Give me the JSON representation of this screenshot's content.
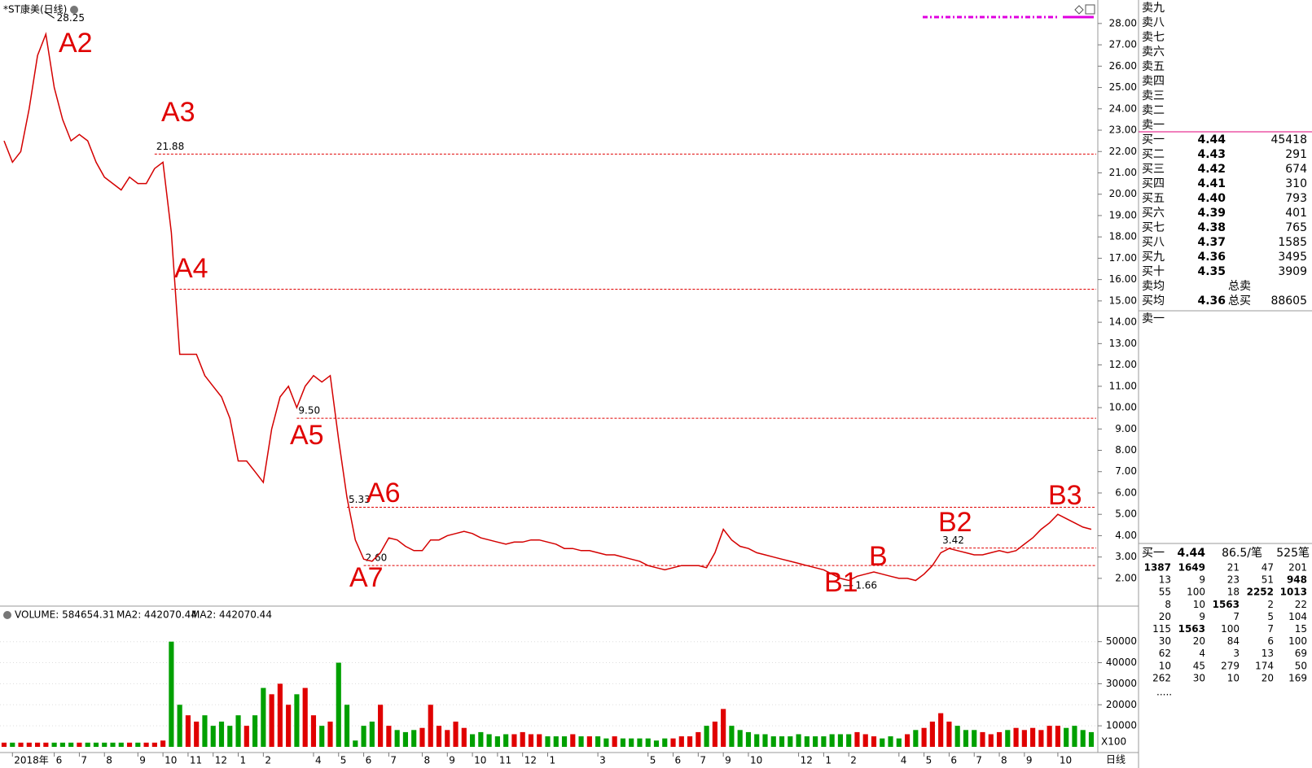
{
  "chart_data": [
    {
      "type": "line",
      "title": "*ST康美(日线)",
      "color": "#d40000",
      "values": [
        22.5,
        21.5,
        22,
        24,
        26.5,
        27.5,
        25,
        23.5,
        22.5,
        22.8,
        22.5,
        21.5,
        20.8,
        20.5,
        20.2,
        20.8,
        20.5,
        20.5,
        21.2,
        21.5,
        18.2,
        12.5,
        12.5,
        12.5,
        11.5,
        11,
        10.5,
        9.5,
        7.5,
        7.5,
        7,
        6.5,
        9,
        10.5,
        11,
        10,
        11,
        11.5,
        11.2,
        11.5,
        8.5,
        5.8,
        3.8,
        2.9,
        2.8,
        3.2,
        3.9,
        3.8,
        3.5,
        3.3,
        3.3,
        3.8,
        3.8,
        4,
        4.1,
        4.2,
        4.1,
        3.9,
        3.8,
        3.7,
        3.6,
        3.7,
        3.7,
        3.8,
        3.8,
        3.7,
        3.6,
        3.4,
        3.4,
        3.3,
        3.3,
        3.2,
        3.1,
        3.1,
        3,
        2.9,
        2.8,
        2.6,
        2.5,
        2.4,
        2.5,
        2.6,
        2.6,
        2.6,
        2.5,
        3.2,
        4.3,
        3.8,
        3.5,
        3.4,
        3.2,
        3.1,
        3,
        2.9,
        2.8,
        2.7,
        2.6,
        2.5,
        2.4,
        2.2,
        2,
        1.9,
        2.1,
        2.2,
        2.3,
        2.2,
        2.1,
        2,
        2,
        1.9,
        2.2,
        2.6,
        3.2,
        3.4,
        3.3,
        3.2,
        3.1,
        3.1,
        3.2,
        3.3,
        3.2,
        3.3,
        3.6,
        3.9,
        4.3,
        4.6,
        5,
        4.8,
        4.6,
        4.4,
        4.3
      ],
      "ylim": [
        0.7,
        29.1
      ],
      "yticks": [
        {
          "value": 2,
          "label": "2.00"
        },
        {
          "value": 3,
          "label": "3.00"
        },
        {
          "value": 4,
          "label": "4.00"
        },
        {
          "value": 5,
          "label": "5.00"
        },
        {
          "value": 6,
          "label": "6.00"
        },
        {
          "value": 7,
          "label": "7.00"
        },
        {
          "value": 8,
          "label": "8.00"
        },
        {
          "value": 9,
          "label": "9.00"
        },
        {
          "value": 10,
          "label": "10.00"
        },
        {
          "value": 11,
          "label": "11.00"
        },
        {
          "value": 12,
          "label": "12.00"
        },
        {
          "value": 13,
          "label": "13.00"
        },
        {
          "value": 14,
          "label": "14.00"
        },
        {
          "value": 15,
          "label": "15.00"
        },
        {
          "value": 16,
          "label": "16.00"
        },
        {
          "value": 17,
          "label": "17.00"
        },
        {
          "value": 18,
          "label": "18.00"
        },
        {
          "value": 19,
          "label": "19.00"
        },
        {
          "value": 20,
          "label": "20.00"
        },
        {
          "value": 21,
          "label": "21.00"
        },
        {
          "value": 22,
          "label": "22.00"
        },
        {
          "value": 23,
          "label": "23.00"
        },
        {
          "value": 24,
          "label": "24.00"
        },
        {
          "value": 25,
          "label": "25.00"
        },
        {
          "value": 26,
          "label": "26.00"
        },
        {
          "value": 27,
          "label": "27.00"
        },
        {
          "value": 28,
          "label": "28.00"
        }
      ],
      "reference_color": "#e00000",
      "reference_lines": [
        {
          "value": 21.88,
          "label": "21.88"
        },
        {
          "value": 15.55
        },
        {
          "value": 9.5,
          "label": "9.50"
        },
        {
          "value": 5.33,
          "label": "5.33"
        },
        {
          "value": 3.42,
          "label": "3.42"
        },
        {
          "value": 2.6,
          "label": "2.60"
        }
      ],
      "extremes": [
        28.25,
        1.66
      ],
      "annotations": [
        "A2",
        "A3",
        "A4",
        "A5",
        "A6",
        "A7",
        "B",
        "B1",
        "B2",
        "B3"
      ]
    },
    {
      "type": "bar",
      "legend": [
        "VOLUME: 584654.31",
        "MA2: 442070.44",
        "MA2: 442070.44"
      ],
      "legend_colors": [
        "#000000",
        "#000000",
        "#e000e0"
      ],
      "up_color": "#e00000",
      "down_color": "#00a000",
      "unit_label": "X100",
      "period_label": "日线",
      "categories": [
        null,
        "2018年",
        null,
        null,
        null,
        null,
        "6",
        null,
        null,
        "7",
        null,
        null,
        "8",
        null,
        null,
        null,
        "9",
        null,
        null,
        "10",
        null,
        null,
        "11",
        null,
        null,
        "12",
        null,
        null,
        "1",
        null,
        null,
        "2",
        null,
        null,
        null,
        null,
        null,
        "4",
        null,
        null,
        "5",
        null,
        null,
        "6",
        null,
        null,
        "7",
        null,
        null,
        null,
        "8",
        null,
        null,
        "9",
        null,
        null,
        "10",
        null,
        null,
        "11",
        null,
        null,
        "12",
        null,
        null,
        "1",
        null,
        null,
        null,
        null,
        null,
        "3",
        null,
        null,
        null,
        null,
        null,
        "5",
        null,
        null,
        "6",
        null,
        null,
        "7",
        null,
        null,
        "9",
        null,
        null,
        "10",
        null,
        null,
        null,
        null,
        null,
        "12",
        null,
        null,
        "1",
        null,
        null,
        "2",
        null,
        null,
        null,
        null,
        null,
        "4",
        null,
        null,
        "5",
        null,
        null,
        "6",
        null,
        null,
        "7",
        null,
        null,
        "8",
        null,
        null,
        "9",
        null,
        null,
        null,
        "10",
        null,
        null,
        null,
        null
      ],
      "values": [
        2000,
        2000,
        2000,
        2000,
        2000,
        2000,
        2000,
        2000,
        2000,
        2000,
        2000,
        2000,
        2000,
        2000,
        2000,
        2000,
        2000,
        2000,
        2000,
        3000,
        50000,
        20000,
        15000,
        12000,
        15000,
        10000,
        12000,
        10000,
        15000,
        10000,
        15000,
        28000,
        25000,
        30000,
        20000,
        25000,
        28000,
        15000,
        10000,
        12000,
        40000,
        20000,
        3000,
        10000,
        12000,
        20000,
        10000,
        8000,
        7000,
        8000,
        9000,
        20000,
        10000,
        8000,
        12000,
        9000,
        6000,
        7000,
        6000,
        5000,
        6000,
        6000,
        7000,
        6000,
        6000,
        5000,
        5000,
        5000,
        6000,
        5000,
        5000,
        5000,
        4000,
        5000,
        4000,
        4000,
        4000,
        4000,
        3000,
        4000,
        4000,
        5000,
        5000,
        7000,
        10000,
        12000,
        18000,
        10000,
        8000,
        7000,
        6000,
        6000,
        5000,
        5000,
        5000,
        6000,
        5000,
        5000,
        5000,
        6000,
        6000,
        6000,
        7000,
        6000,
        5000,
        4000,
        5000,
        4000,
        6000,
        8000,
        9000,
        12000,
        16000,
        12000,
        10000,
        8000,
        8000,
        7000,
        6000,
        7000,
        8000,
        9000,
        8000,
        9000,
        8000,
        10000,
        10000,
        9000,
        10000,
        8000,
        7000
      ],
      "ylim": [
        0,
        58000
      ],
      "yticks": [
        10000,
        20000,
        30000,
        40000,
        50000
      ]
    }
  ],
  "order_book": {
    "sell_levels": [
      "卖九",
      "卖八",
      "卖七",
      "卖六",
      "卖五",
      "卖四",
      "卖三",
      "卖二",
      "卖一"
    ],
    "buy_levels": [
      [
        "买一",
        "4.44",
        "45418"
      ],
      [
        "买二",
        "4.43",
        "291"
      ],
      [
        "买三",
        "4.42",
        "674"
      ],
      [
        "买四",
        "4.41",
        "310"
      ],
      [
        "买五",
        "4.40",
        "793"
      ],
      [
        "买六",
        "4.39",
        "401"
      ],
      [
        "买七",
        "4.38",
        "765"
      ],
      [
        "买八",
        "4.37",
        "1585"
      ],
      [
        "买九",
        "4.36",
        "3495"
      ],
      [
        "买十",
        "4.35",
        "3909"
      ]
    ],
    "sell_avg": {
      "label": "卖均",
      "total_label": "总卖"
    },
    "buy_avg": {
      "label": "买均",
      "price": "4.36",
      "total_label": "总买",
      "total": "88605"
    },
    "sell_one": "卖一",
    "tick_header": [
      "买一",
      "4.44",
      "86.5/笔",
      "525笔"
    ],
    "ticks": [
      [
        "1387",
        "1649",
        "21",
        "47",
        "201"
      ],
      [
        "13",
        "9",
        "23",
        "51",
        "948"
      ],
      [
        "55",
        "100",
        "18",
        "2252",
        "1013"
      ],
      [
        "8",
        "10",
        "1563",
        "2",
        "22"
      ],
      [
        "20",
        "9",
        "7",
        "5",
        "104"
      ],
      [
        "115",
        "1563",
        "100",
        "7",
        "15"
      ],
      [
        "30",
        "20",
        "84",
        "6",
        "100"
      ],
      [
        "62",
        "4",
        "3",
        "13",
        "69"
      ],
      [
        "10",
        "45",
        "279",
        "174",
        "50"
      ],
      [
        "262",
        "30",
        "10",
        "20",
        "169"
      ]
    ],
    "more": "....."
  }
}
